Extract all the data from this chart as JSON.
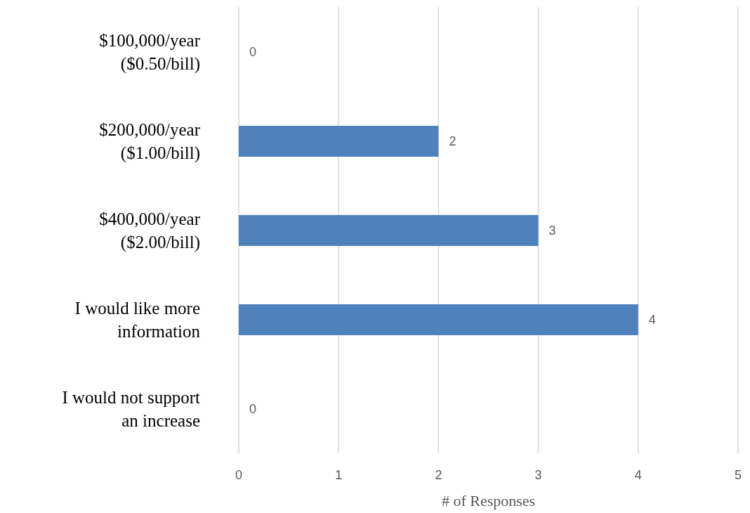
{
  "chart_data": {
    "type": "bar",
    "orientation": "horizontal",
    "xlabel": "# of Responses",
    "categories": [
      "$100,000/year ($0.50/bill)",
      "$200,000/year ($1.00/bill)",
      "$400,000/year ($2.00/bill)",
      "I would like more information",
      "I would not support an increase"
    ],
    "values": [
      0,
      2,
      3,
      4,
      0
    ],
    "color": "#4f81bd",
    "xlim": [
      0,
      5
    ],
    "xticks": [
      0,
      1,
      2,
      3,
      4,
      5
    ],
    "grid": "x",
    "data_labels": true
  }
}
